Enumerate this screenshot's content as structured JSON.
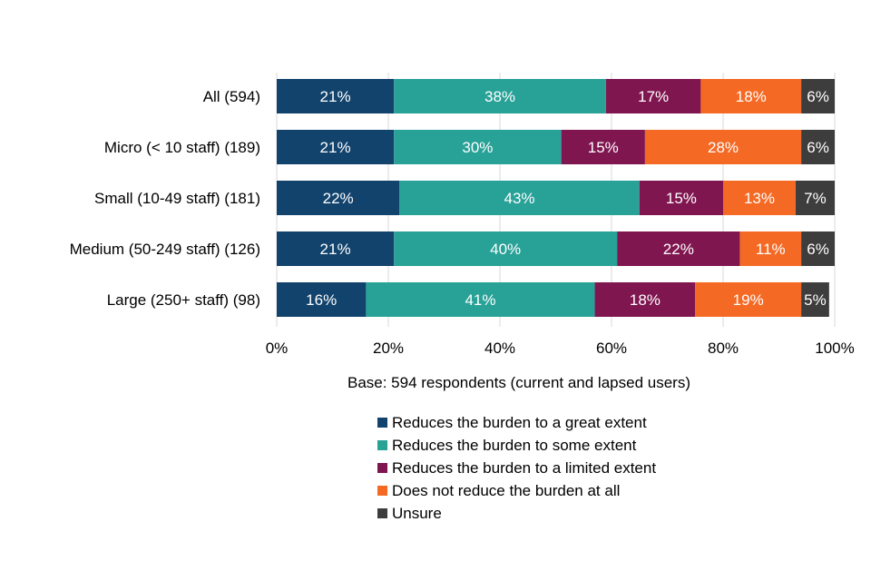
{
  "chart_data": {
    "type": "bar",
    "orientation": "horizontal",
    "stacked": true,
    "categories": [
      "All (594)",
      "Micro (< 10 staff) (189)",
      "Small (10-49 staff) (181)",
      "Medium (50-249 staff) (126)",
      "Large (250+ staff) (98)"
    ],
    "series": [
      {
        "name": "Reduces the burden to a great extent",
        "color": "#12436D",
        "values": [
          21,
          21,
          22,
          21,
          16
        ]
      },
      {
        "name": "Reduces the burden to some extent",
        "color": "#28A197",
        "values": [
          38,
          30,
          43,
          40,
          41
        ]
      },
      {
        "name": "Reduces the burden to a limited extent",
        "color": "#801650",
        "values": [
          17,
          15,
          15,
          22,
          18
        ]
      },
      {
        "name": "Does not reduce the burden at all",
        "color": "#F46A25",
        "values": [
          18,
          28,
          13,
          11,
          19
        ]
      },
      {
        "name": "Unsure",
        "color": "#3D3D3D",
        "values": [
          6,
          6,
          7,
          6,
          5
        ]
      }
    ],
    "xticks": [
      "0%",
      "20%",
      "40%",
      "60%",
      "80%",
      "100%"
    ],
    "xlim": [
      0,
      100
    ],
    "xlabel": "Base: 594 respondents (current and lapsed users)",
    "grid": true,
    "legend_position": "bottom"
  }
}
